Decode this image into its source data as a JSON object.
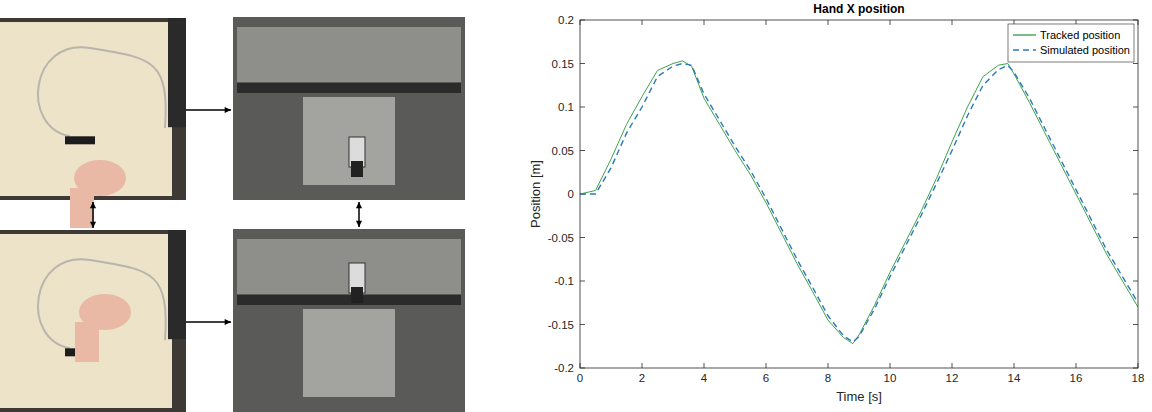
{
  "chart_data": {
    "type": "line",
    "title": "Hand X position",
    "x_label": "Time [s]",
    "y_label": "Position [m]",
    "x": [
      0,
      0.5,
      1,
      1.5,
      2,
      2.5,
      3,
      3.3,
      3.6,
      4,
      4.5,
      5,
      5.5,
      6,
      6.5,
      7,
      7.5,
      8,
      8.5,
      8.8,
      9,
      9.5,
      10,
      10.5,
      11,
      11.5,
      12,
      12.5,
      13,
      13.5,
      13.8,
      14,
      14.5,
      15,
      15.5,
      16,
      16.5,
      17,
      17.5,
      18
    ],
    "series": [
      {
        "name": "Tracked position",
        "color": "#3fa34d",
        "line_style": "solid",
        "values": [
          0,
          0.004,
          0.04,
          0.08,
          0.112,
          0.142,
          0.15,
          0.153,
          0.147,
          0.11,
          0.08,
          0.05,
          0.022,
          -0.01,
          -0.045,
          -0.08,
          -0.112,
          -0.145,
          -0.165,
          -0.172,
          -0.162,
          -0.128,
          -0.09,
          -0.055,
          -0.02,
          0.018,
          0.06,
          0.1,
          0.135,
          0.148,
          0.15,
          0.138,
          0.105,
          0.07,
          0.035,
          0.0,
          -0.035,
          -0.07,
          -0.1,
          -0.13
        ]
      },
      {
        "name": "Simulated position",
        "color": "#2a7ab9",
        "line_style": "dashed",
        "values": [
          0,
          0.0,
          0.03,
          0.07,
          0.1,
          0.135,
          0.147,
          0.15,
          0.148,
          0.115,
          0.085,
          0.055,
          0.027,
          -0.005,
          -0.04,
          -0.075,
          -0.107,
          -0.14,
          -0.163,
          -0.17,
          -0.164,
          -0.132,
          -0.095,
          -0.06,
          -0.025,
          0.012,
          0.05,
          0.09,
          0.125,
          0.143,
          0.148,
          0.14,
          0.11,
          0.075,
          0.04,
          0.005,
          -0.03,
          -0.065,
          -0.095,
          -0.125
        ]
      }
    ],
    "xlim": [
      0,
      18
    ],
    "xticks": [
      0,
      2,
      4,
      6,
      8,
      10,
      12,
      14,
      16,
      18
    ],
    "ylim": [
      -0.2,
      0.2
    ],
    "yticks": [
      -0.2,
      -0.15,
      -0.1,
      -0.05,
      0,
      0.05,
      0.1,
      0.15,
      0.2
    ],
    "grid": false,
    "legend": "top-right"
  }
}
